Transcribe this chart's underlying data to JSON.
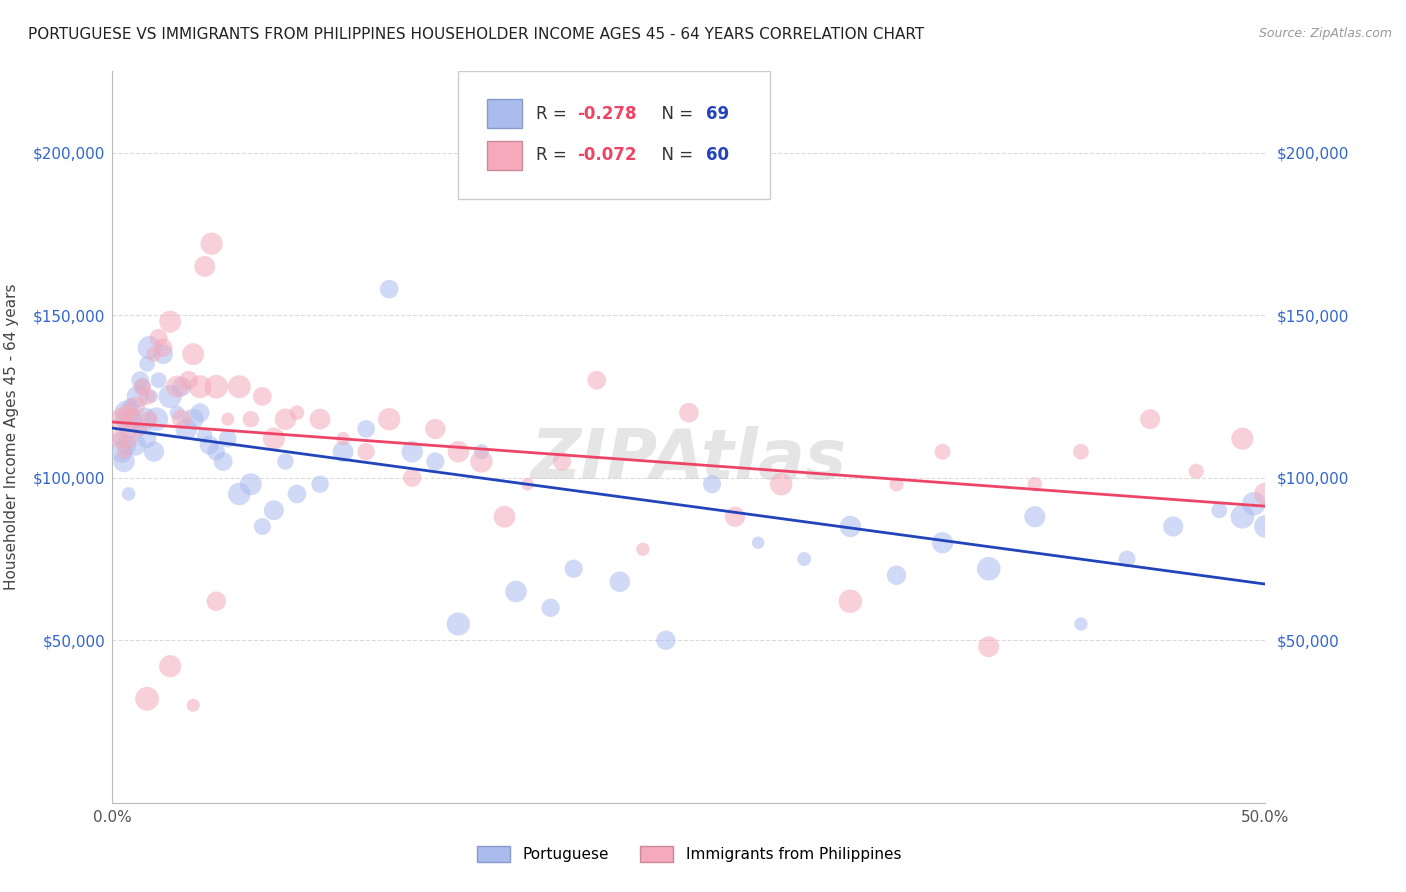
{
  "title": "PORTUGUESE VS IMMIGRANTS FROM PHILIPPINES HOUSEHOLDER INCOME AGES 45 - 64 YEARS CORRELATION CHART",
  "source": "Source: ZipAtlas.com",
  "ylabel": "Householder Income Ages 45 - 64 years",
  "xlim": [
    0.0,
    0.5
  ],
  "ylim": [
    0,
    225000
  ],
  "yticks": [
    0,
    50000,
    100000,
    150000,
    200000
  ],
  "ytick_labels": [
    "",
    "$50,000",
    "$100,000",
    "$150,000",
    "$200,000"
  ],
  "xtick_labels": [
    "0.0%",
    "",
    "",
    "",
    "",
    "50.0%"
  ],
  "xtick_positions": [
    0.0,
    0.1,
    0.2,
    0.3,
    0.4,
    0.5
  ],
  "background_color": "#ffffff",
  "grid_color": "#cccccc",
  "watermark": "ZIPAtlas",
  "portuguese_color": "#aabbee",
  "philippines_color": "#f4aabb",
  "portuguese_line_color": "#2244bb",
  "philippines_line_color": "#ee4466",
  "r_color": "#ee4466",
  "n_color": "#2244bb",
  "label_color": "#333333",
  "R_portuguese": "-0.278",
  "N_portuguese": "69",
  "R_philippines": "-0.072",
  "N_philippines": "60",
  "portuguese_x": [
    0.003,
    0.004,
    0.005,
    0.005,
    0.006,
    0.006,
    0.007,
    0.007,
    0.008,
    0.009,
    0.01,
    0.011,
    0.012,
    0.012,
    0.013,
    0.014,
    0.015,
    0.015,
    0.016,
    0.017,
    0.018,
    0.019,
    0.02,
    0.022,
    0.025,
    0.028,
    0.03,
    0.032,
    0.035,
    0.038,
    0.04,
    0.042,
    0.045,
    0.048,
    0.05,
    0.055,
    0.06,
    0.065,
    0.07,
    0.075,
    0.08,
    0.09,
    0.1,
    0.11,
    0.12,
    0.13,
    0.14,
    0.15,
    0.16,
    0.175,
    0.19,
    0.2,
    0.22,
    0.24,
    0.26,
    0.28,
    0.3,
    0.32,
    0.34,
    0.36,
    0.38,
    0.4,
    0.42,
    0.44,
    0.46,
    0.48,
    0.49,
    0.495,
    0.5
  ],
  "portuguese_y": [
    112000,
    108000,
    118000,
    105000,
    120000,
    110000,
    115000,
    95000,
    122000,
    118000,
    110000,
    125000,
    130000,
    115000,
    128000,
    118000,
    135000,
    112000,
    140000,
    125000,
    108000,
    118000,
    130000,
    138000,
    125000,
    120000,
    128000,
    115000,
    118000,
    120000,
    113000,
    110000,
    108000,
    105000,
    112000,
    95000,
    98000,
    85000,
    90000,
    105000,
    95000,
    98000,
    108000,
    115000,
    158000,
    108000,
    105000,
    55000,
    108000,
    65000,
    60000,
    72000,
    68000,
    50000,
    98000,
    80000,
    75000,
    85000,
    70000,
    80000,
    72000,
    88000,
    55000,
    75000,
    85000,
    90000,
    88000,
    92000,
    85000
  ],
  "philippines_x": [
    0.003,
    0.004,
    0.005,
    0.006,
    0.007,
    0.008,
    0.01,
    0.012,
    0.013,
    0.015,
    0.016,
    0.018,
    0.02,
    0.022,
    0.025,
    0.028,
    0.03,
    0.033,
    0.035,
    0.038,
    0.04,
    0.043,
    0.045,
    0.05,
    0.055,
    0.06,
    0.065,
    0.07,
    0.075,
    0.08,
    0.09,
    0.1,
    0.11,
    0.12,
    0.13,
    0.14,
    0.15,
    0.16,
    0.17,
    0.18,
    0.195,
    0.21,
    0.23,
    0.25,
    0.27,
    0.29,
    0.32,
    0.34,
    0.36,
    0.38,
    0.4,
    0.42,
    0.45,
    0.47,
    0.49,
    0.5,
    0.035,
    0.045,
    0.025,
    0.015
  ],
  "philippines_y": [
    112000,
    118000,
    108000,
    120000,
    112000,
    118000,
    122000,
    115000,
    128000,
    125000,
    118000,
    138000,
    143000,
    140000,
    148000,
    128000,
    118000,
    130000,
    138000,
    128000,
    165000,
    172000,
    128000,
    118000,
    128000,
    118000,
    125000,
    112000,
    118000,
    120000,
    118000,
    112000,
    108000,
    118000,
    100000,
    115000,
    108000,
    105000,
    88000,
    98000,
    105000,
    130000,
    78000,
    120000,
    88000,
    98000,
    62000,
    98000,
    108000,
    48000,
    98000,
    108000,
    118000,
    102000,
    112000,
    95000,
    30000,
    62000,
    42000,
    32000
  ]
}
